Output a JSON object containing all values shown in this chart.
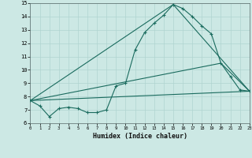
{
  "xlabel": "Humidex (Indice chaleur)",
  "bg_color": "#cce8e4",
  "grid_color": "#b0d4d0",
  "line_color": "#1a6b5e",
  "xlim": [
    0,
    23
  ],
  "ylim": [
    6,
    15
  ],
  "yticks": [
    6,
    7,
    8,
    9,
    10,
    11,
    12,
    13,
    14,
    15
  ],
  "xticks": [
    0,
    1,
    2,
    3,
    4,
    5,
    6,
    7,
    8,
    9,
    10,
    11,
    12,
    13,
    14,
    15,
    16,
    17,
    18,
    19,
    20,
    21,
    22,
    23
  ],
  "series_main": {
    "x": [
      0,
      1,
      2,
      3,
      4,
      5,
      6,
      7,
      8,
      9,
      10,
      11,
      12,
      13,
      14,
      15,
      16,
      17,
      18,
      19,
      20,
      21,
      22,
      23
    ],
    "y": [
      7.7,
      7.3,
      6.5,
      7.1,
      7.2,
      7.1,
      6.8,
      6.8,
      7.0,
      8.8,
      9.0,
      11.5,
      12.8,
      13.5,
      14.1,
      14.9,
      14.6,
      14.0,
      13.3,
      12.7,
      10.5,
      9.5,
      8.5,
      8.4
    ]
  },
  "series_diag": {
    "x": [
      0,
      23
    ],
    "y": [
      7.7,
      8.4
    ]
  },
  "series_peak": {
    "x": [
      0,
      15,
      23
    ],
    "y": [
      7.7,
      14.9,
      8.4
    ]
  },
  "series_mid": {
    "x": [
      0,
      20,
      23
    ],
    "y": [
      7.7,
      10.5,
      8.4
    ]
  }
}
